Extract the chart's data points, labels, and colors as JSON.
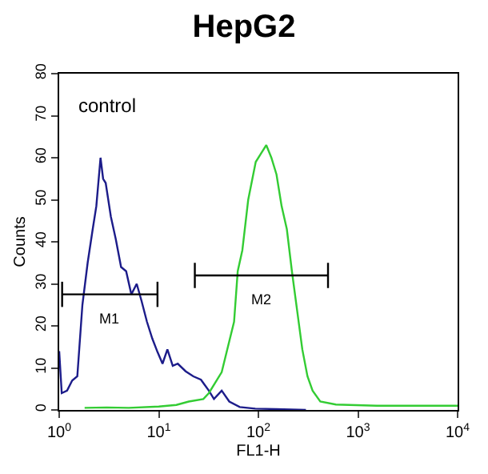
{
  "chart_data": {
    "type": "line",
    "title": "HepG2",
    "xlabel": "FL1-H",
    "ylabel": "Counts",
    "log": "x",
    "xlim": [
      1,
      10000
    ],
    "xticks": [
      {
        "value": 1,
        "label": "10$^{0}$"
      },
      {
        "value": 10,
        "label": "10$^{1}$"
      },
      {
        "value": 100,
        "label": "10$^{2}$"
      },
      {
        "value": 1000,
        "label": "10$^{3}$"
      },
      {
        "value": 10000,
        "label": "10$^{4}$"
      }
    ],
    "ylim": [
      0,
      80
    ],
    "yticks": [
      0,
      10,
      20,
      30,
      40,
      50,
      60,
      70,
      80
    ],
    "annotations": [
      "control",
      "M1",
      "M2"
    ],
    "series": [
      {
        "color": "#1c1c8a",
        "x": [
          1.0,
          1.06,
          1.2,
          1.35,
          1.52,
          1.71,
          1.93,
          2.17,
          2.36,
          2.6,
          2.76,
          2.93,
          3.3,
          3.7,
          4.18,
          4.7,
          5.3,
          6.0,
          6.7,
          7.6,
          8.6,
          9.7,
          10.9,
          12.2,
          13.8,
          15.5,
          18.6,
          22.2,
          26.5,
          31.8,
          35.8,
          42.8,
          51,
          65,
          93,
          150,
          300
        ],
        "values": [
          14,
          4,
          4.6,
          7,
          8,
          25,
          35,
          43,
          48.5,
          60,
          55,
          54,
          46,
          40.6,
          34,
          33,
          27.5,
          30,
          26,
          21,
          17,
          13.8,
          11,
          14.4,
          10.5,
          11,
          9.2,
          8,
          7.2,
          4.6,
          2.6,
          4.6,
          2,
          0.7,
          0.3,
          0.2,
          0
        ]
      },
      {
        "color": "#33cc33",
        "x": [
          1.8,
          3,
          5,
          10,
          15,
          20,
          28,
          31.8,
          42.8,
          57,
          62,
          69,
          79,
          94,
          106,
          120,
          135,
          152,
          171,
          193,
          217,
          245,
          276,
          311,
          350,
          418,
          600,
          1550,
          10000
        ],
        "values": [
          0.5,
          0.6,
          0.5,
          0.8,
          1.2,
          2,
          2.6,
          4,
          9,
          21,
          33,
          38,
          50,
          59,
          61,
          63,
          60,
          56,
          48.5,
          43,
          33,
          23.6,
          14.4,
          8,
          4.6,
          2,
          1.3,
          1,
          1
        ]
      },
      {
        "type": "line",
        "color": "#000000",
        "x": [
          1.07,
          9.7
        ],
        "values": [
          27.5,
          27.5
        ],
        "errors": [
          3,
          3
        ]
      },
      {
        "type": "line",
        "color": "#000000",
        "x": [
          23,
          500
        ],
        "values": [
          32,
          32
        ],
        "errors": [
          3,
          3
        ]
      }
    ]
  }
}
